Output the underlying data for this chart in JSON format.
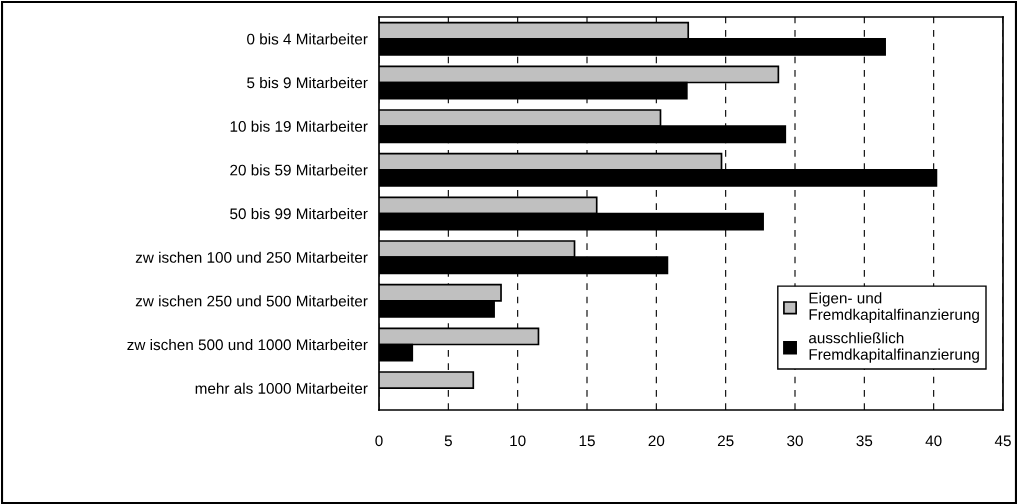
{
  "chart_data": {
    "type": "bar",
    "orientation": "horizontal",
    "categories": [
      "0 bis 4 Mitarbeiter",
      "5 bis 9 Mitarbeiter",
      "10 bis 19 Mitarbeiter",
      "20 bis 59 Mitarbeiter",
      "50 bis 99 Mitarbeiter",
      "zw ischen 100 und 250 Mitarbeiter",
      "zw ischen 250 und 500 Mitarbeiter",
      "zw ischen 500 und 1000 Mitarbeiter",
      "mehr als 1000 Mitarbeiter"
    ],
    "series": [
      {
        "name": "Eigen- und\nFremdkapitalfinanzierung",
        "color": "#c0c0c0",
        "values": [
          22.3,
          28.8,
          20.3,
          24.7,
          15.7,
          14.1,
          8.8,
          11.5,
          6.8
        ]
      },
      {
        "name": "ausschließlich\nFremdkapitalfinanzierung",
        "color": "#000000",
        "values": [
          36.5,
          22.2,
          29.3,
          40.2,
          27.7,
          20.8,
          8.3,
          2.4,
          null
        ]
      }
    ],
    "xlim": [
      0,
      45
    ],
    "xticks": [
      0,
      5,
      10,
      15,
      20,
      25,
      30,
      35,
      40,
      45
    ],
    "grid": "x",
    "legend": "bottom right"
  }
}
